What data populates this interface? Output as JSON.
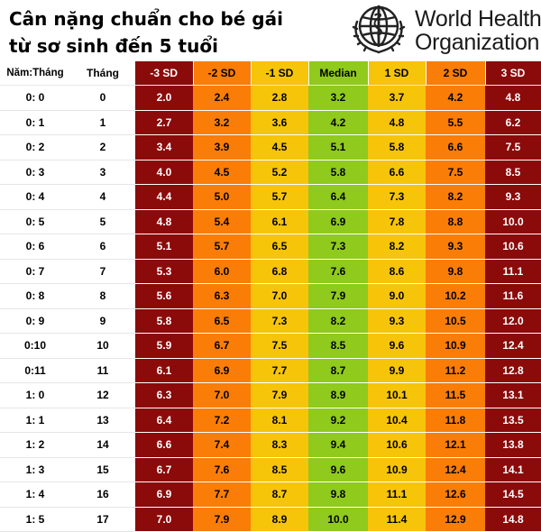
{
  "title": {
    "line1": "Cân nặng chuẩn cho bé gái",
    "line2": "từ sơ sinh đến 5 tuổi"
  },
  "logo": {
    "icon": "who-emblem-icon",
    "line1": "World Health",
    "line2": "Organization"
  },
  "colors": {
    "sd_minus3": "#8b0a0a",
    "sd_minus2": "#f97d06",
    "sd_minus1": "#f6c409",
    "median": "#8fca1c",
    "sd_plus1": "#f6c409",
    "sd_plus2": "#f97d06",
    "sd_plus3": "#8b0a0a"
  },
  "headers": [
    "Năm:Tháng",
    "Tháng",
    "-3 SD",
    "-2 SD",
    "-1 SD",
    "Median",
    "1 SD",
    "2 SD",
    "3 SD"
  ],
  "rows": [
    [
      "0: 0",
      "0",
      "2.0",
      "2.4",
      "2.8",
      "3.2",
      "3.7",
      "4.2",
      "4.8"
    ],
    [
      "0: 1",
      "1",
      "2.7",
      "3.2",
      "3.6",
      "4.2",
      "4.8",
      "5.5",
      "6.2"
    ],
    [
      "0: 2",
      "2",
      "3.4",
      "3.9",
      "4.5",
      "5.1",
      "5.8",
      "6.6",
      "7.5"
    ],
    [
      "0: 3",
      "3",
      "4.0",
      "4.5",
      "5.2",
      "5.8",
      "6.6",
      "7.5",
      "8.5"
    ],
    [
      "0: 4",
      "4",
      "4.4",
      "5.0",
      "5.7",
      "6.4",
      "7.3",
      "8.2",
      "9.3"
    ],
    [
      "0: 5",
      "5",
      "4.8",
      "5.4",
      "6.1",
      "6.9",
      "7.8",
      "8.8",
      "10.0"
    ],
    [
      "0: 6",
      "6",
      "5.1",
      "5.7",
      "6.5",
      "7.3",
      "8.2",
      "9.3",
      "10.6"
    ],
    [
      "0: 7",
      "7",
      "5.3",
      "6.0",
      "6.8",
      "7.6",
      "8.6",
      "9.8",
      "11.1"
    ],
    [
      "0: 8",
      "8",
      "5.6",
      "6.3",
      "7.0",
      "7.9",
      "9.0",
      "10.2",
      "11.6"
    ],
    [
      "0: 9",
      "9",
      "5.8",
      "6.5",
      "7.3",
      "8.2",
      "9.3",
      "10.5",
      "12.0"
    ],
    [
      "0:10",
      "10",
      "5.9",
      "6.7",
      "7.5",
      "8.5",
      "9.6",
      "10.9",
      "12.4"
    ],
    [
      "0:11",
      "11",
      "6.1",
      "6.9",
      "7.7",
      "8.7",
      "9.9",
      "11.2",
      "12.8"
    ],
    [
      "1: 0",
      "12",
      "6.3",
      "7.0",
      "7.9",
      "8.9",
      "10.1",
      "11.5",
      "13.1"
    ],
    [
      "1: 1",
      "13",
      "6.4",
      "7.2",
      "8.1",
      "9.2",
      "10.4",
      "11.8",
      "13.5"
    ],
    [
      "1: 2",
      "14",
      "6.6",
      "7.4",
      "8.3",
      "9.4",
      "10.6",
      "12.1",
      "13.8"
    ],
    [
      "1: 3",
      "15",
      "6.7",
      "7.6",
      "8.5",
      "9.6",
      "10.9",
      "12.4",
      "14.1"
    ],
    [
      "1: 4",
      "16",
      "6.9",
      "7.7",
      "8.7",
      "9.8",
      "11.1",
      "12.6",
      "14.5"
    ],
    [
      "1: 5",
      "17",
      "7.0",
      "7.9",
      "8.9",
      "10.0",
      "11.4",
      "12.9",
      "14.8"
    ]
  ]
}
